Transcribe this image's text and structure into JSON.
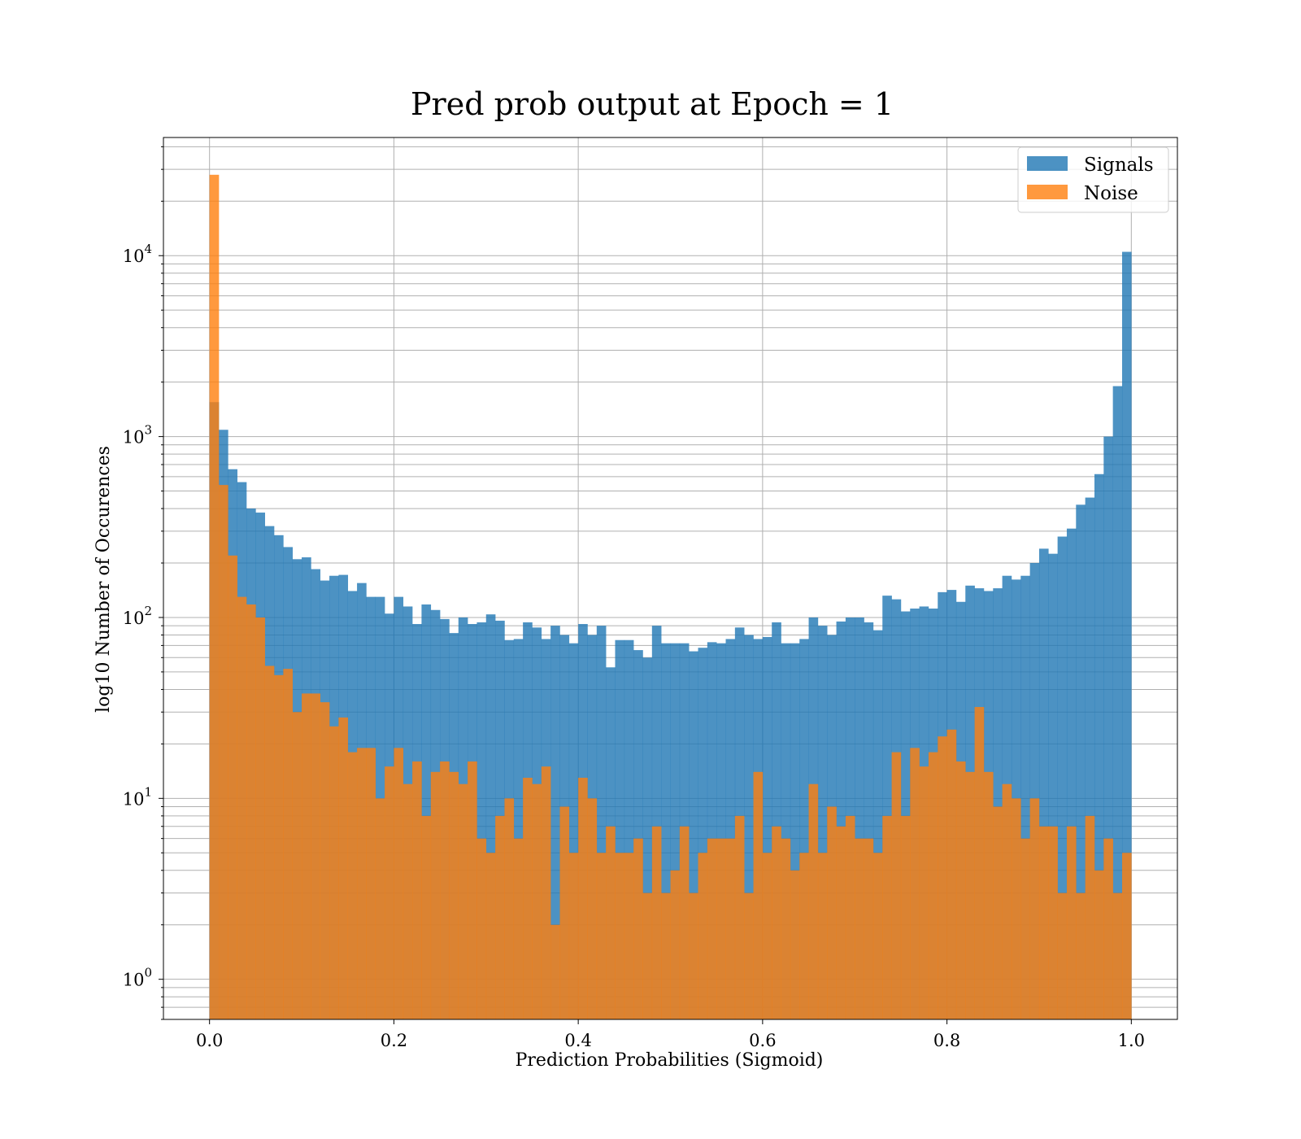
{
  "chart_data": {
    "type": "bar",
    "title": "Pred prob output at Epoch = 1",
    "xlabel": "Prediction Probabilities (Sigmoid)",
    "ylabel": "log10 Number of Occurences",
    "y_scale": "log",
    "grid": true,
    "legend_position": "top-right",
    "xlim": [
      -0.05,
      1.05
    ],
    "ylim": [
      0.6,
      45000
    ],
    "x_ticks": [
      {
        "value": 0.0,
        "label": "0.0"
      },
      {
        "value": 0.2,
        "label": "0.2"
      },
      {
        "value": 0.4,
        "label": "0.4"
      },
      {
        "value": 0.6,
        "label": "0.6"
      },
      {
        "value": 0.8,
        "label": "0.8"
      },
      {
        "value": 1.0,
        "label": "1.0"
      }
    ],
    "y_ticks": [
      {
        "value": 1,
        "base": "10",
        "exp": "0"
      },
      {
        "value": 10,
        "base": "10",
        "exp": "1"
      },
      {
        "value": 100,
        "base": "10",
        "exp": "2"
      },
      {
        "value": 1000,
        "base": "10",
        "exp": "3"
      },
      {
        "value": 10000,
        "base": "10",
        "exp": "4"
      }
    ],
    "bin_edges_range": [
      0.0,
      1.0
    ],
    "bin_count": 100,
    "series": [
      {
        "name": "Signals",
        "color": "#1f77b4",
        "values": [
          1550,
          1090,
          660,
          560,
          400,
          380,
          320,
          285,
          245,
          210,
          215,
          185,
          160,
          170,
          172,
          140,
          155,
          130,
          130,
          105,
          130,
          115,
          92,
          118,
          110,
          98,
          82,
          100,
          92,
          94,
          104,
          96,
          75,
          76,
          94,
          88,
          76,
          90,
          80,
          72,
          92,
          80,
          90,
          53,
          75,
          75,
          66,
          60,
          90,
          72,
          72,
          72,
          65,
          68,
          73,
          72,
          76,
          88,
          80,
          76,
          78,
          94,
          72,
          72,
          76,
          100,
          90,
          80,
          95,
          100,
          100,
          94,
          85,
          132,
          126,
          108,
          112,
          115,
          112,
          138,
          142,
          122,
          150,
          145,
          140,
          145,
          170,
          162,
          170,
          200,
          240,
          225,
          280,
          310,
          420,
          460,
          620,
          1000,
          1900,
          10500
        ]
      },
      {
        "name": "Noise",
        "color": "#ff7f0e",
        "values": [
          28000,
          540,
          220,
          130,
          118,
          100,
          54,
          48,
          52,
          30,
          38,
          38,
          34,
          25,
          28,
          18,
          19,
          19,
          10,
          15,
          19,
          12,
          16,
          8,
          14,
          16,
          14,
          12,
          16,
          6,
          5,
          8,
          10,
          6,
          13,
          12,
          15,
          2,
          9,
          5,
          13,
          10,
          5,
          7,
          5,
          5,
          6,
          3,
          7,
          3,
          4,
          7,
          3,
          5,
          6,
          6,
          6,
          8,
          3,
          14,
          5,
          7,
          6,
          4,
          5,
          12,
          5,
          9,
          7,
          8,
          6,
          6,
          5,
          8,
          18,
          8,
          19,
          15,
          18,
          22,
          24,
          16,
          14,
          32,
          14,
          9,
          12,
          10,
          6,
          10,
          7,
          7,
          3,
          7,
          3,
          8,
          4,
          6,
          3,
          5
        ]
      }
    ]
  }
}
